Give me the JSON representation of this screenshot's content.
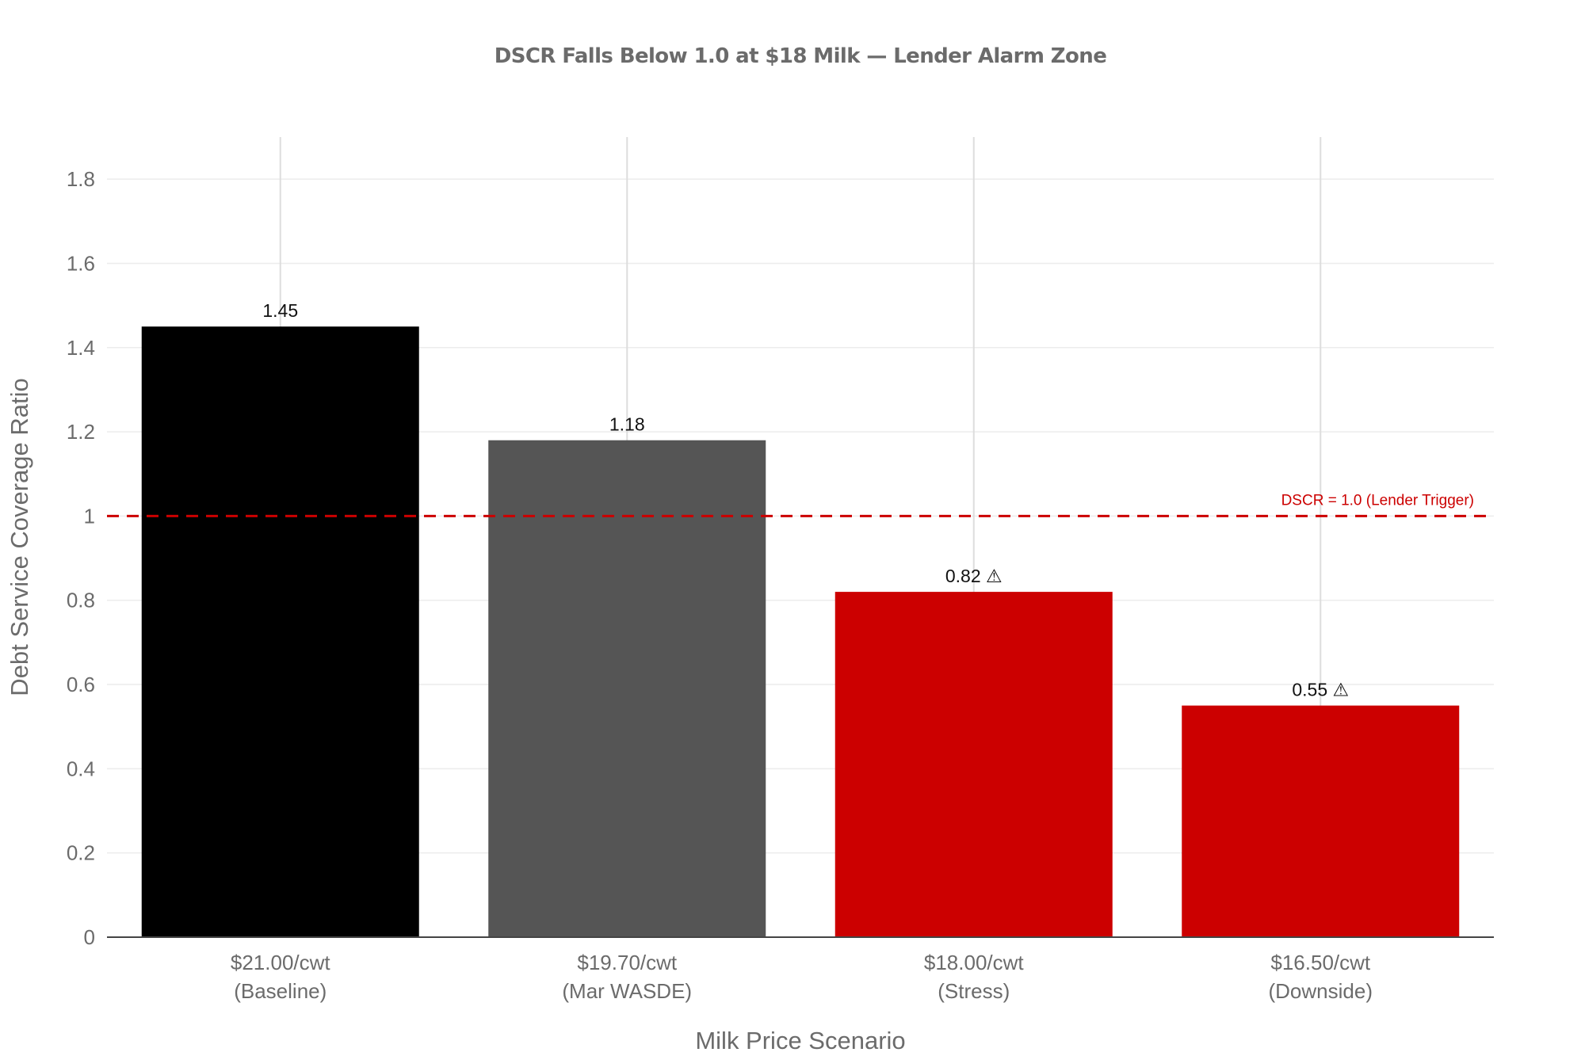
{
  "chart_data": {
    "type": "bar",
    "title": "DSCR Falls Below 1.0 at $18 Milk — Lender Alarm Zone",
    "xlabel": "Milk Price Scenario",
    "ylabel": "Debt Service Coverage Ratio",
    "ylim": [
      0,
      1.9
    ],
    "yticks": [
      {
        "value": 0,
        "label": "0"
      },
      {
        "value": 0.2,
        "label": "0.2"
      },
      {
        "value": 0.4,
        "label": "0.4"
      },
      {
        "value": 0.6,
        "label": "0.6"
      },
      {
        "value": 0.8,
        "label": "0.8"
      },
      {
        "value": 1,
        "label": "1"
      },
      {
        "value": 1.2,
        "label": "1.2"
      },
      {
        "value": 1.4,
        "label": "1.4"
      },
      {
        "value": 1.6,
        "label": "1.6"
      },
      {
        "value": 1.8,
        "label": "1.8"
      }
    ],
    "categories": [
      [
        "$21.00/cwt",
        "(Baseline)"
      ],
      [
        "$19.70/cwt",
        "(Mar WASDE)"
      ],
      [
        "$18.00/cwt",
        "(Stress)"
      ],
      [
        "$16.50/cwt",
        "(Downside)"
      ]
    ],
    "values": [
      1.45,
      1.18,
      0.82,
      0.55
    ],
    "data_labels": [
      "1.45",
      "1.18",
      "0.82 ⚠",
      "0.55 ⚠"
    ],
    "bar_colors": [
      "#000000",
      "#555555",
      "#cc0000",
      "#cc0000"
    ],
    "reference_line": {
      "value": 1.0,
      "label": "DSCR = 1.0 (Lender Trigger)",
      "color": "#cc0000",
      "style": "dashed"
    },
    "grid": true,
    "legend": "none"
  }
}
